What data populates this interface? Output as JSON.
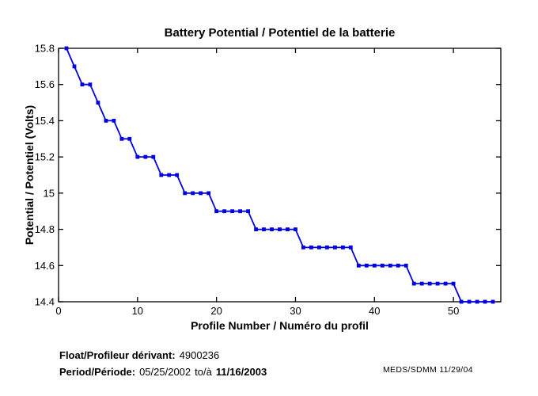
{
  "footer": {
    "float_label": "Float/Profileur dérivant:",
    "float_value": "4900236",
    "period_label": "Period/Période:",
    "period_start": "05/25/2002",
    "period_to": "to/à",
    "period_end": "11/16/2003",
    "credit": "MEDS/SDMM  11/29/04"
  },
  "chart_data": {
    "type": "line",
    "title": "Battery Potential / Potentiel de la batterie",
    "xlabel": "Profile Number / Numéro du profil",
    "ylabel": "Potential / Potentiel (Volts)",
    "xlim": [
      0,
      56
    ],
    "ylim": [
      14.4,
      15.8
    ],
    "x_ticks": [
      0,
      10,
      20,
      30,
      40,
      50
    ],
    "x_tick_labels": [
      "0",
      "10",
      "20",
      "30",
      "40",
      "50"
    ],
    "y_ticks": [
      14.4,
      14.6,
      14.8,
      15.0,
      15.2,
      15.4,
      15.6,
      15.8
    ],
    "y_tick_labels": [
      "14.4",
      "14.6",
      "14.8",
      "15",
      "15.2",
      "15.4",
      "15.6",
      "15.8"
    ],
    "grid": false,
    "legend": null,
    "line_color": "#0000E0",
    "axis_color": "#000000",
    "marker": "square",
    "x": [
      1,
      2,
      3,
      4,
      5,
      6,
      7,
      8,
      9,
      10,
      11,
      12,
      13,
      14,
      15,
      16,
      17,
      18,
      19,
      20,
      21,
      22,
      23,
      24,
      25,
      26,
      27,
      28,
      29,
      30,
      31,
      32,
      33,
      34,
      35,
      36,
      37,
      38,
      39,
      40,
      41,
      42,
      43,
      44,
      45,
      46,
      47,
      48,
      49,
      50,
      51,
      52,
      53,
      54,
      55
    ],
    "y": [
      15.8,
      15.7,
      15.6,
      15.6,
      15.5,
      15.4,
      15.4,
      15.3,
      15.3,
      15.2,
      15.2,
      15.2,
      15.1,
      15.1,
      15.1,
      15.0,
      15.0,
      15.0,
      15.0,
      14.9,
      14.9,
      14.9,
      14.9,
      14.9,
      14.8,
      14.8,
      14.8,
      14.8,
      14.8,
      14.8,
      14.7,
      14.7,
      14.7,
      14.7,
      14.7,
      14.7,
      14.7,
      14.6,
      14.6,
      14.6,
      14.6,
      14.6,
      14.6,
      14.6,
      14.5,
      14.5,
      14.5,
      14.5,
      14.5,
      14.5,
      14.4,
      14.4,
      14.4,
      14.4,
      14.4
    ]
  }
}
